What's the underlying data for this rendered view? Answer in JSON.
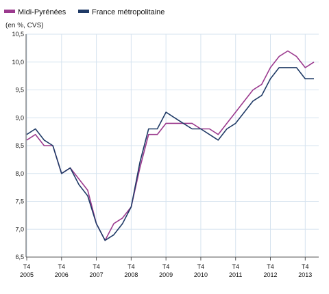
{
  "chart_data": {
    "type": "line",
    "unit_label": "(en %, CVS)",
    "y_axis": {
      "range": [
        6.5,
        10.5
      ],
      "tick_values": [
        6.5,
        7.0,
        7.5,
        8.0,
        8.5,
        9.0,
        9.5,
        10.0,
        10.5
      ],
      "tick_labels": [
        "6,5",
        "7,0",
        "7,5",
        "8,0",
        "8,5",
        "9,0",
        "9,5",
        "10,0",
        "10,5"
      ]
    },
    "x_axis": {
      "quarters": [
        "T4 2005",
        "T1 2006",
        "T2 2006",
        "T3 2006",
        "T4 2006",
        "T1 2007",
        "T2 2007",
        "T3 2007",
        "T4 2007",
        "T1 2008",
        "T2 2008",
        "T3 2008",
        "T4 2008",
        "T1 2009",
        "T2 2009",
        "T3 2009",
        "T4 2009",
        "T1 2010",
        "T2 2010",
        "T3 2010",
        "T4 2010",
        "T1 2011",
        "T2 2011",
        "T3 2011",
        "T4 2011",
        "T1 2012",
        "T2 2012",
        "T3 2012",
        "T4 2012",
        "T1 2013",
        "T2 2013",
        "T3 2013",
        "T4 2013",
        "T1 2014"
      ],
      "labeled_ticks": [
        {
          "index": 0,
          "line1": "T4",
          "line2": "2005"
        },
        {
          "index": 4,
          "line1": "T4",
          "line2": "2006"
        },
        {
          "index": 8,
          "line1": "T4",
          "line2": "2007"
        },
        {
          "index": 12,
          "line1": "T4",
          "line2": "2008"
        },
        {
          "index": 16,
          "line1": "T4",
          "line2": "2009"
        },
        {
          "index": 20,
          "line1": "T4",
          "line2": "2010"
        },
        {
          "index": 24,
          "line1": "T4",
          "line2": "2011"
        },
        {
          "index": 28,
          "line1": "T4",
          "line2": "2012"
        },
        {
          "index": 32,
          "line1": "T4",
          "line2": "2013"
        }
      ]
    },
    "grid": true,
    "legend_position": "top-left",
    "series": [
      {
        "name": "Midi-Pyrénées",
        "color": "#9b3a8e",
        "values": [
          8.6,
          8.7,
          8.5,
          8.5,
          8.0,
          8.1,
          7.9,
          7.7,
          7.1,
          6.8,
          7.1,
          7.2,
          7.4,
          8.1,
          8.7,
          8.7,
          8.9,
          8.9,
          8.9,
          8.9,
          8.8,
          8.8,
          8.7,
          8.9,
          9.1,
          9.3,
          9.5,
          9.6,
          9.9,
          10.1,
          10.2,
          10.1,
          9.9,
          10.0
        ]
      },
      {
        "name": "France métropolitaine",
        "color": "#1f3a66",
        "values": [
          8.7,
          8.8,
          8.6,
          8.5,
          8.0,
          8.1,
          7.8,
          7.6,
          7.1,
          6.8,
          6.9,
          7.1,
          7.4,
          8.2,
          8.8,
          8.8,
          9.1,
          9.0,
          8.9,
          8.8,
          8.8,
          8.7,
          8.6,
          8.8,
          8.9,
          9.1,
          9.3,
          9.4,
          9.7,
          9.9,
          9.9,
          9.9,
          9.7,
          9.7
        ]
      }
    ]
  }
}
